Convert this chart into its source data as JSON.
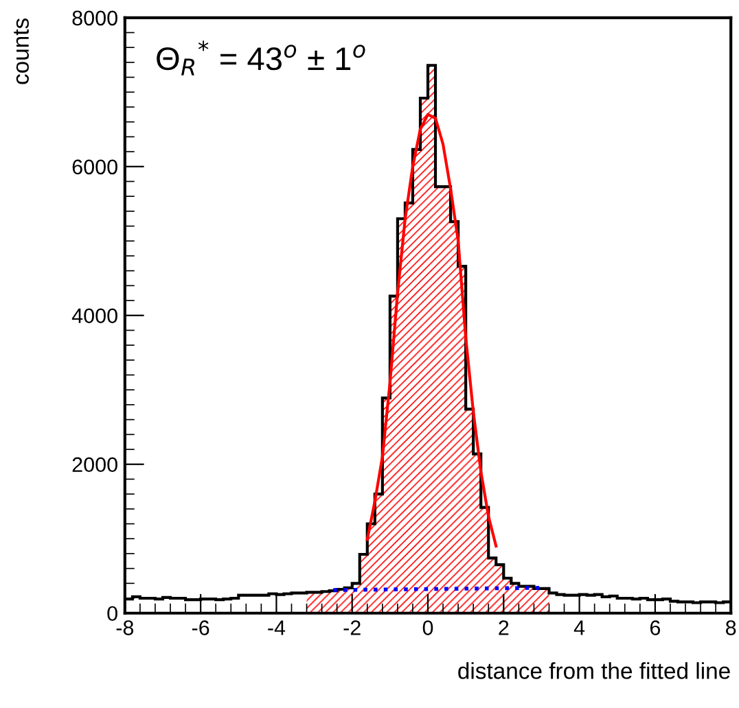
{
  "chart_data": {
    "type": "histogram",
    "xlabel": "distance from the fitted line",
    "ylabel": "counts",
    "annotations": [
      "Θ$_{R}$$^{*}$ = 43$^{o}$ ± 1$^{o}$"
    ],
    "bins": [
      -8.0,
      -7.8,
      -7.6,
      -7.4,
      -7.2,
      -7.0,
      -6.8,
      -6.6,
      -6.4,
      -6.2,
      -6.0,
      -5.8,
      -5.6,
      -5.4,
      -5.2,
      -5.0,
      -4.8,
      -4.6,
      -4.4,
      -4.2,
      -4.0,
      -3.8,
      -3.6,
      -3.4,
      -3.2,
      -3.0,
      -2.8,
      -2.6,
      -2.4,
      -2.2,
      -2.0,
      -1.8,
      -1.6,
      -1.4,
      -1.2,
      -1.0,
      -0.8,
      -0.6,
      -0.4,
      -0.2,
      0.0,
      0.2,
      0.4,
      0.6,
      0.8,
      1.0,
      1.2,
      1.4,
      1.6,
      1.8,
      2.0,
      2.2,
      2.4,
      2.6,
      2.8,
      3.0,
      3.2,
      3.4,
      3.6,
      3.8,
      4.0,
      4.2,
      4.4,
      4.6,
      4.8,
      5.0,
      5.2,
      5.4,
      5.6,
      5.8,
      6.0,
      6.2,
      6.4,
      6.6,
      6.8,
      7.0,
      7.2,
      7.4,
      7.6,
      7.8,
      8.0
    ],
    "series": [
      {
        "color": "#000000",
        "values": [
          190,
          220,
          200,
          200,
          190,
          210,
          200,
          200,
          180,
          180,
          190,
          190,
          180,
          190,
          200,
          240,
          240,
          240,
          240,
          260,
          250,
          260,
          270,
          270,
          280,
          280,
          290,
          300,
          320,
          340,
          400,
          790,
          1200,
          1600,
          2890,
          4260,
          5300,
          5510,
          6230,
          6920,
          7360,
          5730,
          5730,
          5260,
          4660,
          2740,
          2140,
          1420,
          740,
          650,
          470,
          400,
          360,
          360,
          330,
          330,
          270,
          250,
          240,
          240,
          250,
          240,
          250,
          220,
          230,
          200,
          200,
          190,
          200,
          180,
          180,
          190,
          160,
          150,
          150,
          140,
          150,
          150,
          140,
          150
        ]
      },
      {
        "color": "#ff0000",
        "bins": [
          -3.2,
          -3.0,
          -2.8,
          -2.6,
          -2.4,
          -2.2,
          -2.0,
          -1.8,
          -1.6,
          -1.4,
          -1.2,
          -1.0,
          -0.8,
          -0.6,
          -0.4,
          -0.2,
          0.0,
          0.2,
          0.4,
          0.6,
          0.8,
          1.0,
          1.2,
          1.4,
          1.6,
          1.8,
          2.0,
          2.2,
          2.4,
          2.6,
          2.8,
          3.0,
          3.2
        ],
        "values": [
          280,
          280,
          290,
          300,
          320,
          340,
          400,
          790,
          1200,
          1600,
          2890,
          4260,
          5300,
          5510,
          6230,
          6920,
          7360,
          5730,
          5730,
          5260,
          4660,
          2740,
          2140,
          1420,
          740,
          650,
          470,
          400,
          360,
          360,
          330,
          330
        ]
      },
      {
        "type": "line",
        "color": "#ff0000",
        "x": [
          -1.6,
          -1.4,
          -1.2,
          -1.0,
          -0.8,
          -0.6,
          -0.4,
          -0.2,
          0.0,
          0.2,
          0.4,
          0.6,
          0.8,
          1.0,
          1.2,
          1.4,
          1.6,
          1.8
        ],
        "values": [
          990,
          1500,
          2100,
          3100,
          4300,
          5300,
          6000,
          6500,
          6700,
          6650,
          6300,
          5700,
          5000,
          3700,
          2700,
          1900,
          1300,
          900
        ]
      },
      {
        "type": "line",
        "color": "#0000ff",
        "line_style": "dotted",
        "x": [
          -2.5,
          3.0
        ],
        "values": [
          310,
          340
        ]
      }
    ],
    "xlim": [
      -8,
      8
    ],
    "xticks": [
      -8,
      -6,
      -4,
      -2,
      0,
      2,
      4,
      6,
      8
    ],
    "ylim": [
      0,
      8000
    ],
    "yticks": [
      0,
      2000,
      4000,
      6000,
      8000
    ],
    "grid": false,
    "legend": false
  }
}
